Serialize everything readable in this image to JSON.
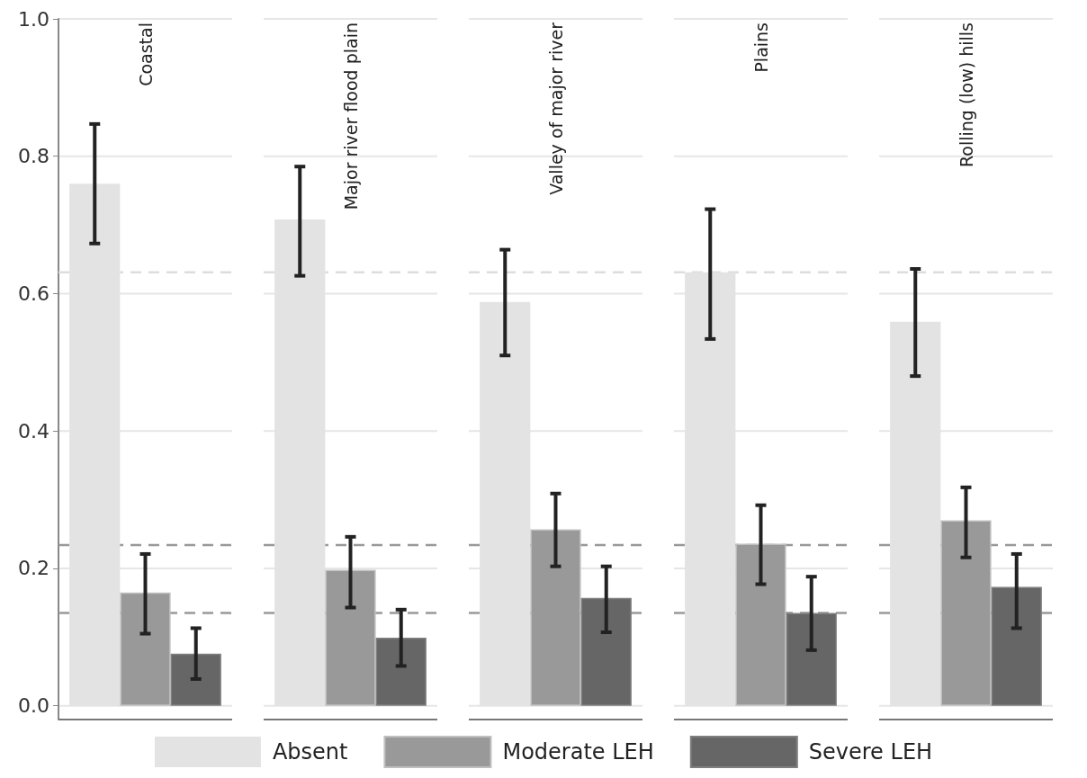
{
  "chart_data": {
    "type": "bar",
    "categories": [
      "Coastal",
      "Major river flood plain",
      "Valley of major river",
      "Plains",
      "Rolling (low) hills"
    ],
    "ylim": [
      -0.02,
      1.0
    ],
    "yticks": [
      {
        "value": 0,
        "label": "0.0"
      },
      0.2,
      0.4,
      0.6,
      0.8,
      {
        "value": 1,
        "label": "1.0"
      }
    ],
    "grid": "y",
    "legend": "bottom",
    "series": [
      {
        "name": "Absent",
        "color": "#e3e3e3",
        "values": [
          0.76,
          0.708,
          0.588,
          0.631,
          0.559
        ],
        "errors": [
          [
            0.673,
            0.847
          ],
          [
            0.626,
            0.785
          ],
          [
            0.51,
            0.664
          ],
          [
            0.534,
            0.723
          ],
          [
            0.48,
            0.636
          ]
        ]
      },
      {
        "name": "Moderate LEH",
        "color": "#999999",
        "values": [
          0.165,
          0.198,
          0.257,
          0.236,
          0.27
        ],
        "errors": [
          [
            0.105,
            0.221
          ],
          [
            0.143,
            0.246
          ],
          [
            0.203,
            0.309
          ],
          [
            0.177,
            0.292
          ],
          [
            0.216,
            0.318
          ]
        ]
      },
      {
        "name": "Severe LEH",
        "color": "#666666",
        "values": [
          0.076,
          0.099,
          0.157,
          0.135,
          0.173
        ],
        "errors": [
          [
            0.039,
            0.113
          ],
          [
            0.058,
            0.14
          ],
          [
            0.107,
            0.203
          ],
          [
            0.081,
            0.188
          ],
          [
            0.113,
            0.221
          ]
        ]
      }
    ],
    "ref_lines": [
      {
        "axis": "y",
        "value": 0.631,
        "color": "#dddddd",
        "line_style": "dashed"
      },
      {
        "axis": "y",
        "value": 0.234,
        "color": "#999999",
        "line_style": "dashed"
      },
      {
        "axis": "y",
        "value": 0.135,
        "color": "#999999",
        "line_style": "dashed"
      }
    ]
  }
}
